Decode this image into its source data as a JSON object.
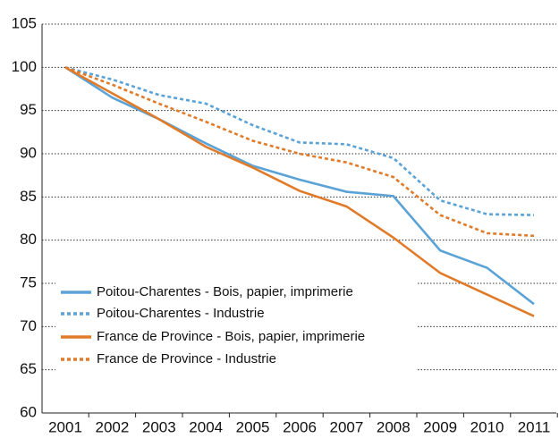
{
  "chart_data": {
    "type": "line",
    "categories": [
      "2001",
      "2002",
      "2003",
      "2004",
      "2005",
      "2006",
      "2007",
      "2008",
      "2009",
      "2010",
      "2011"
    ],
    "series": [
      {
        "name": "Poitou-Charentes - Bois, papier, imprimerie",
        "color": "#5ba3d6",
        "style": "solid",
        "values": [
          100,
          96.5,
          94,
          91.2,
          88.6,
          87,
          85.6,
          85.1,
          78.8,
          76.8,
          72.6
        ]
      },
      {
        "name": "Poitou-Charentes - Industrie",
        "color": "#5ba3d6",
        "style": "dotted",
        "values": [
          100,
          98.6,
          96.8,
          95.8,
          93.3,
          91.3,
          91.1,
          89.5,
          84.6,
          83,
          82.9
        ]
      },
      {
        "name": "France de Province - Bois, papier, imprimerie",
        "color": "#e07b2a",
        "style": "solid",
        "values": [
          100,
          97,
          94,
          90.8,
          88.4,
          85.7,
          83.9,
          80.3,
          76.2,
          73.7,
          71.2
        ]
      },
      {
        "name": "France de Province - Industrie",
        "color": "#e07b2a",
        "style": "dotted",
        "values": [
          100,
          98,
          95.8,
          93.7,
          91.5,
          90,
          89,
          87.3,
          82.9,
          80.8,
          80.5
        ]
      }
    ],
    "ylim": [
      60,
      105
    ],
    "yticks": [
      60,
      65,
      70,
      75,
      80,
      85,
      90,
      95,
      100,
      105
    ],
    "grid": true,
    "legend": "lower-left"
  }
}
